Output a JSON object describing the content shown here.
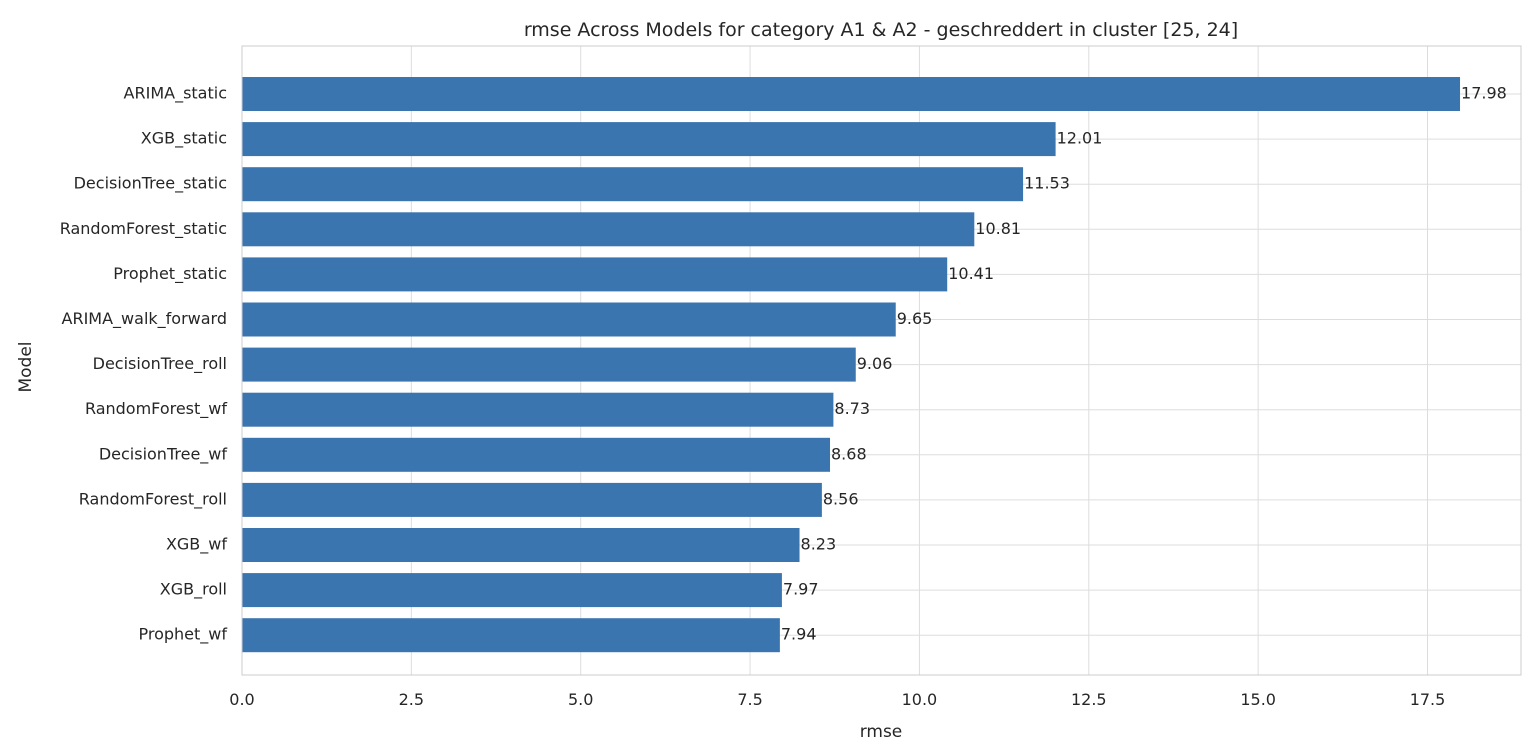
{
  "chart_data": {
    "type": "bar",
    "orientation": "horizontal",
    "title": "rmse Across Models for category A1 & A2 -  geschreddert in cluster [25, 24]",
    "xlabel": "rmse",
    "ylabel": "Model",
    "xlim": [
      0,
      18.88
    ],
    "xticks": [
      "0.0",
      "2.5",
      "5.0",
      "7.5",
      "10.0",
      "12.5",
      "15.0",
      "17.5"
    ],
    "grid": true,
    "bar_color": "#3b75af",
    "categories": [
      "ARIMA_static",
      "XGB_static",
      "DecisionTree_static",
      "RandomForest_static",
      "Prophet_static",
      "ARIMA_walk_forward",
      "DecisionTree_roll",
      "RandomForest_wf",
      "DecisionTree_wf",
      "RandomForest_roll",
      "XGB_wf",
      "XGB_roll",
      "Prophet_wf"
    ],
    "values": [
      17.98,
      12.01,
      11.53,
      10.81,
      10.41,
      9.65,
      9.06,
      8.73,
      8.68,
      8.56,
      8.23,
      7.97,
      7.94
    ],
    "labels": [
      "17.98",
      "12.01",
      "11.53",
      "10.81",
      "10.41",
      "9.65",
      "9.06",
      "8.73",
      "8.68",
      "8.56",
      "8.23",
      "7.97",
      "7.94"
    ]
  }
}
